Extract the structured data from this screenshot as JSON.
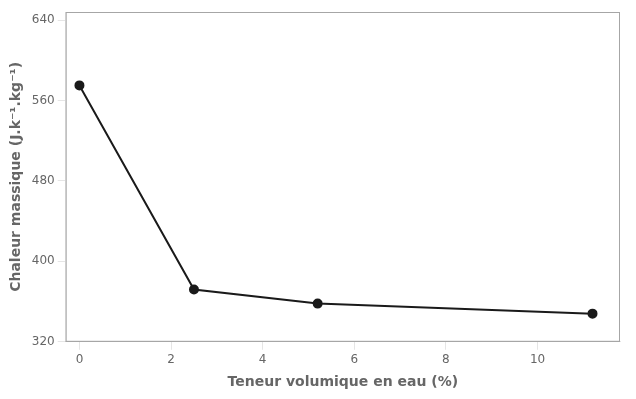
{
  "chart_data": {
    "type": "line",
    "x": [
      0,
      2.5,
      5.2,
      11.2
    ],
    "values": [
      575,
      372,
      358,
      348
    ],
    "xlabel": "Teneur volumique en eau (%)",
    "ylabel": "Chaleur massique (J.k⁻¹.kg⁻¹)",
    "xlim": [
      -0.3,
      11.8
    ],
    "ylim": [
      320,
      648
    ],
    "xticks": [
      0,
      2,
      4,
      6,
      8,
      10
    ],
    "yticks": [
      320,
      400,
      480,
      560,
      640
    ],
    "color": "#1a1a1a",
    "marker": "circle",
    "grid": false
  }
}
